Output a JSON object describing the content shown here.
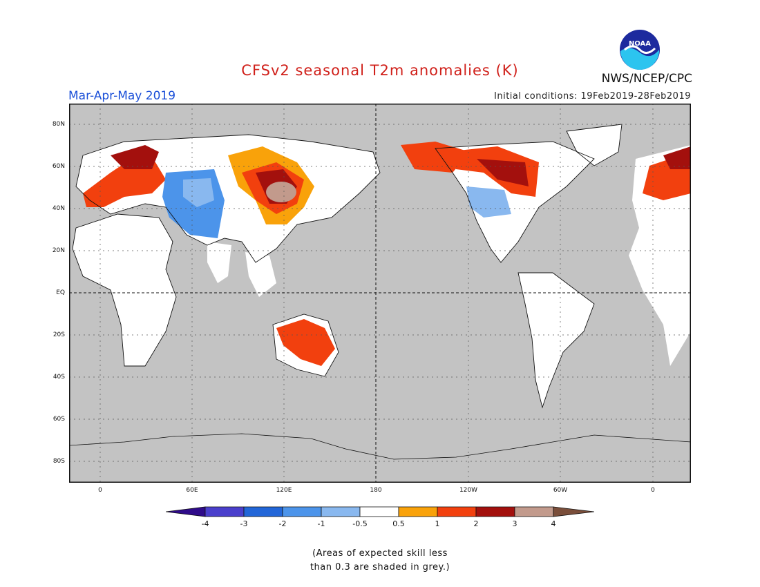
{
  "header": {
    "title": "CFSv2 seasonal T2m anomalies (K)",
    "season": "Mar-Apr-May 2019",
    "initial_conditions": "Initial conditions: 19Feb2019-28Feb2019",
    "agency": "NWS/NCEP/CPC",
    "logo_text": "NOAA"
  },
  "map": {
    "lat_labels": [
      "80N",
      "60N",
      "40N",
      "20N",
      "EQ",
      "20S",
      "40S",
      "60S",
      "80S"
    ],
    "lon_labels": [
      "0",
      "60E",
      "120E",
      "180",
      "120W",
      "60W",
      "0"
    ],
    "colors": {
      "grey_low_skill": "#c3c3c3",
      "neutral": "#ffffff",
      "anom_0_5_1": "#f9a20a",
      "anom_1_2": "#f2400e",
      "anom_2_3": "#a3100d",
      "anom_3_4": "#c29a8c",
      "anom_neg_0_5_1": "#89b8ef",
      "anom_neg_1_2": "#4c94ea"
    }
  },
  "colorbar": {
    "labels": [
      "-4",
      "-3",
      "-2",
      "-1",
      "-0.5",
      "0.5",
      "1",
      "2",
      "3",
      "4"
    ],
    "colors": [
      "#2f0b8a",
      "#4a3fcc",
      "#2266d8",
      "#4c94ea",
      "#89b8ef",
      "#ffffff",
      "#f9a20a",
      "#f2400e",
      "#a3100d",
      "#c29a8c",
      "#7a4e3a"
    ]
  },
  "note": {
    "line1": "(Areas of expected skill less",
    "line2": "than 0.3 are shaded in grey.)"
  }
}
